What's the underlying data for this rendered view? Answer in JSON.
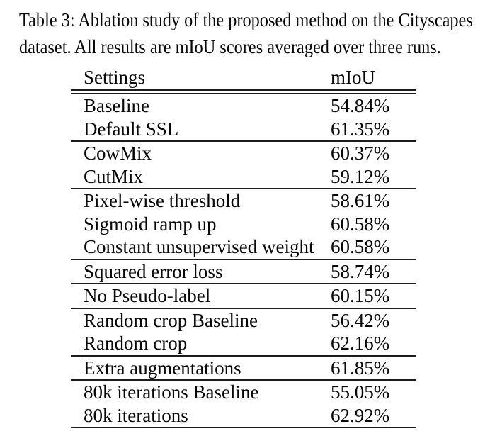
{
  "caption": {
    "line1": "Table 3: Ablation study of the proposed method on the Cityscapes",
    "line2": "dataset. All results are mIoU scores averaged over three runs."
  },
  "table": {
    "header": {
      "settings": "Settings",
      "miou": "mIoU"
    },
    "groups": [
      {
        "rows": [
          {
            "setting": "Baseline",
            "miou": "54.84%"
          },
          {
            "setting": "Default SSL",
            "miou": "61.35%"
          }
        ]
      },
      {
        "rows": [
          {
            "setting": "CowMix",
            "miou": "60.37%"
          },
          {
            "setting": "CutMix",
            "miou": "59.12%"
          }
        ]
      },
      {
        "rows": [
          {
            "setting": "Pixel-wise threshold",
            "miou": "58.61%"
          },
          {
            "setting": "Sigmoid ramp up",
            "miou": "60.58%"
          },
          {
            "setting": "Constant unsupervised weight",
            "miou": "60.58%"
          }
        ]
      },
      {
        "rows": [
          {
            "setting": "Squared error loss",
            "miou": "58.74%"
          }
        ]
      },
      {
        "rows": [
          {
            "setting": "No Pseudo-label",
            "miou": "60.15%"
          }
        ]
      },
      {
        "rows": [
          {
            "setting": "Random crop Baseline",
            "miou": "56.42%"
          },
          {
            "setting": "Random crop",
            "miou": "62.16%"
          }
        ]
      },
      {
        "rows": [
          {
            "setting": "Extra augmentations",
            "miou": "61.85%"
          }
        ]
      },
      {
        "rows": [
          {
            "setting": "80k iterations Baseline",
            "miou": "55.05%"
          },
          {
            "setting": "80k iterations",
            "miou": "62.92%"
          }
        ]
      }
    ]
  },
  "colors": {
    "background": "#ffffff",
    "text": "#060606",
    "rule": "#1c1c1c"
  }
}
